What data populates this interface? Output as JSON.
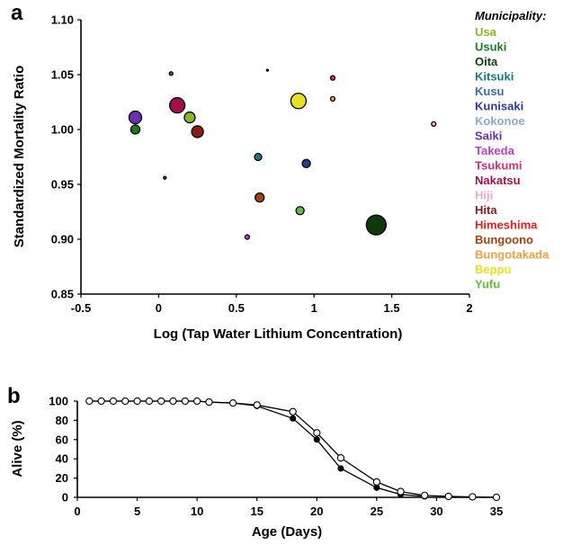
{
  "chart_data": [
    {
      "panel": "a",
      "type": "scatter",
      "xlabel": "Log (Tap Water Lithium Concentration)",
      "ylabel": "Standardized Mortality Ratio",
      "xlim": [
        -0.5,
        2
      ],
      "ylim": [
        0.85,
        1.1
      ],
      "x_ticks": [
        "-0.5",
        "0",
        "0.5",
        "1",
        "1.5",
        "2"
      ],
      "y_ticks": [
        "0.85",
        "0.90",
        "0.95",
        "1.00",
        "1.05",
        "1.10"
      ],
      "legend_title": "Municipality:",
      "legend_position": "right",
      "series": [
        {
          "name": "Usa",
          "color": "#8bb522"
        },
        {
          "name": "Usuki",
          "color": "#1f7a1f"
        },
        {
          "name": "Oita",
          "color": "#0d3b0d"
        },
        {
          "name": "Kitsuki",
          "color": "#1a7a7a"
        },
        {
          "name": "Kusu",
          "color": "#3a6ab0"
        },
        {
          "name": "Kunisaki",
          "color": "#2d3a9a"
        },
        {
          "name": "Kokonoe",
          "color": "#8aa8d8"
        },
        {
          "name": "Saiki",
          "color": "#6a30b0"
        },
        {
          "name": "Takeda",
          "color": "#c040c0"
        },
        {
          "name": "Tsukumi",
          "color": "#d6307a"
        },
        {
          "name": "Nakatsu",
          "color": "#a0104a"
        },
        {
          "name": "Hiji",
          "color": "#f0a8c8"
        },
        {
          "name": "Hita",
          "color": "#8a1a1a"
        },
        {
          "name": "Himeshima",
          "color": "#e02020"
        },
        {
          "name": "Bungoono",
          "color": "#a8400c"
        },
        {
          "name": "Bungotakada",
          "color": "#f0a040"
        },
        {
          "name": "Beppu",
          "color": "#e8e020"
        },
        {
          "name": "Yufu",
          "color": "#60c040"
        }
      ],
      "points": [
        {
          "x": -0.15,
          "y": 1.011,
          "size": 7,
          "color": "#6a30b0"
        },
        {
          "x": -0.15,
          "y": 1.0,
          "size": 5,
          "color": "#1f7a1f"
        },
        {
          "x": 0.04,
          "y": 0.956,
          "size": 1.5,
          "color": "#3a6ab0"
        },
        {
          "x": 0.08,
          "y": 1.051,
          "size": 2,
          "color": "#3a6ab0"
        },
        {
          "x": 0.12,
          "y": 1.022,
          "size": 8.5,
          "color": "#a0104a"
        },
        {
          "x": 0.2,
          "y": 1.011,
          "size": 6,
          "color": "#8bb522"
        },
        {
          "x": 0.25,
          "y": 0.998,
          "size": 6.5,
          "color": "#8a1a1a"
        },
        {
          "x": 0.57,
          "y": 0.902,
          "size": 2.5,
          "color": "#c040c0"
        },
        {
          "x": 0.64,
          "y": 0.975,
          "size": 4,
          "color": "#1a7a7a"
        },
        {
          "x": 0.65,
          "y": 0.938,
          "size": 5,
          "color": "#a8400c"
        },
        {
          "x": 0.7,
          "y": 1.054,
          "size": 1,
          "color": "#000000"
        },
        {
          "x": 0.91,
          "y": 0.926,
          "size": 4.5,
          "color": "#60c040"
        },
        {
          "x": 0.9,
          "y": 1.026,
          "size": 8.5,
          "color": "#e8e020"
        },
        {
          "x": 0.95,
          "y": 0.969,
          "size": 4.5,
          "color": "#2d3a9a"
        },
        {
          "x": 1.12,
          "y": 1.047,
          "size": 2.5,
          "color": "#d6307a"
        },
        {
          "x": 1.12,
          "y": 1.028,
          "size": 2.5,
          "color": "#f0a040"
        },
        {
          "x": 1.4,
          "y": 0.913,
          "size": 11,
          "color": "#0d3b0d"
        },
        {
          "x": 1.77,
          "y": 1.005,
          "size": 2.5,
          "color": "#f0a8c8"
        }
      ]
    },
    {
      "panel": "b",
      "type": "line",
      "xlabel": "Age (Days)",
      "ylabel": "Alive (%)",
      "xlim": [
        0,
        35
      ],
      "ylim": [
        0,
        100
      ],
      "x_ticks": [
        "0",
        "5",
        "10",
        "15",
        "20",
        "25",
        "30",
        "35"
      ],
      "y_ticks": [
        "0",
        "20",
        "40",
        "60",
        "80",
        "100"
      ],
      "series": [
        {
          "marker": "open",
          "x": [
            1,
            2,
            3,
            4,
            5,
            6,
            7,
            8,
            9,
            10,
            11,
            13,
            15,
            18,
            20,
            22,
            25,
            27,
            29,
            31,
            33,
            35
          ],
          "y": [
            100,
            100,
            100,
            100,
            100,
            100,
            100,
            100,
            100,
            100,
            99,
            98,
            96,
            89,
            67,
            41,
            16,
            6,
            2,
            1,
            0.5,
            0
          ]
        },
        {
          "marker": "filled",
          "x": [
            1,
            2,
            3,
            4,
            5,
            6,
            7,
            8,
            9,
            10,
            11,
            13,
            15,
            18,
            20,
            22,
            25,
            27,
            29
          ],
          "y": [
            100,
            100,
            100,
            100,
            100,
            100,
            100,
            100,
            100,
            100,
            99,
            98,
            95,
            82,
            60,
            30,
            10,
            3,
            1
          ]
        }
      ]
    }
  ]
}
